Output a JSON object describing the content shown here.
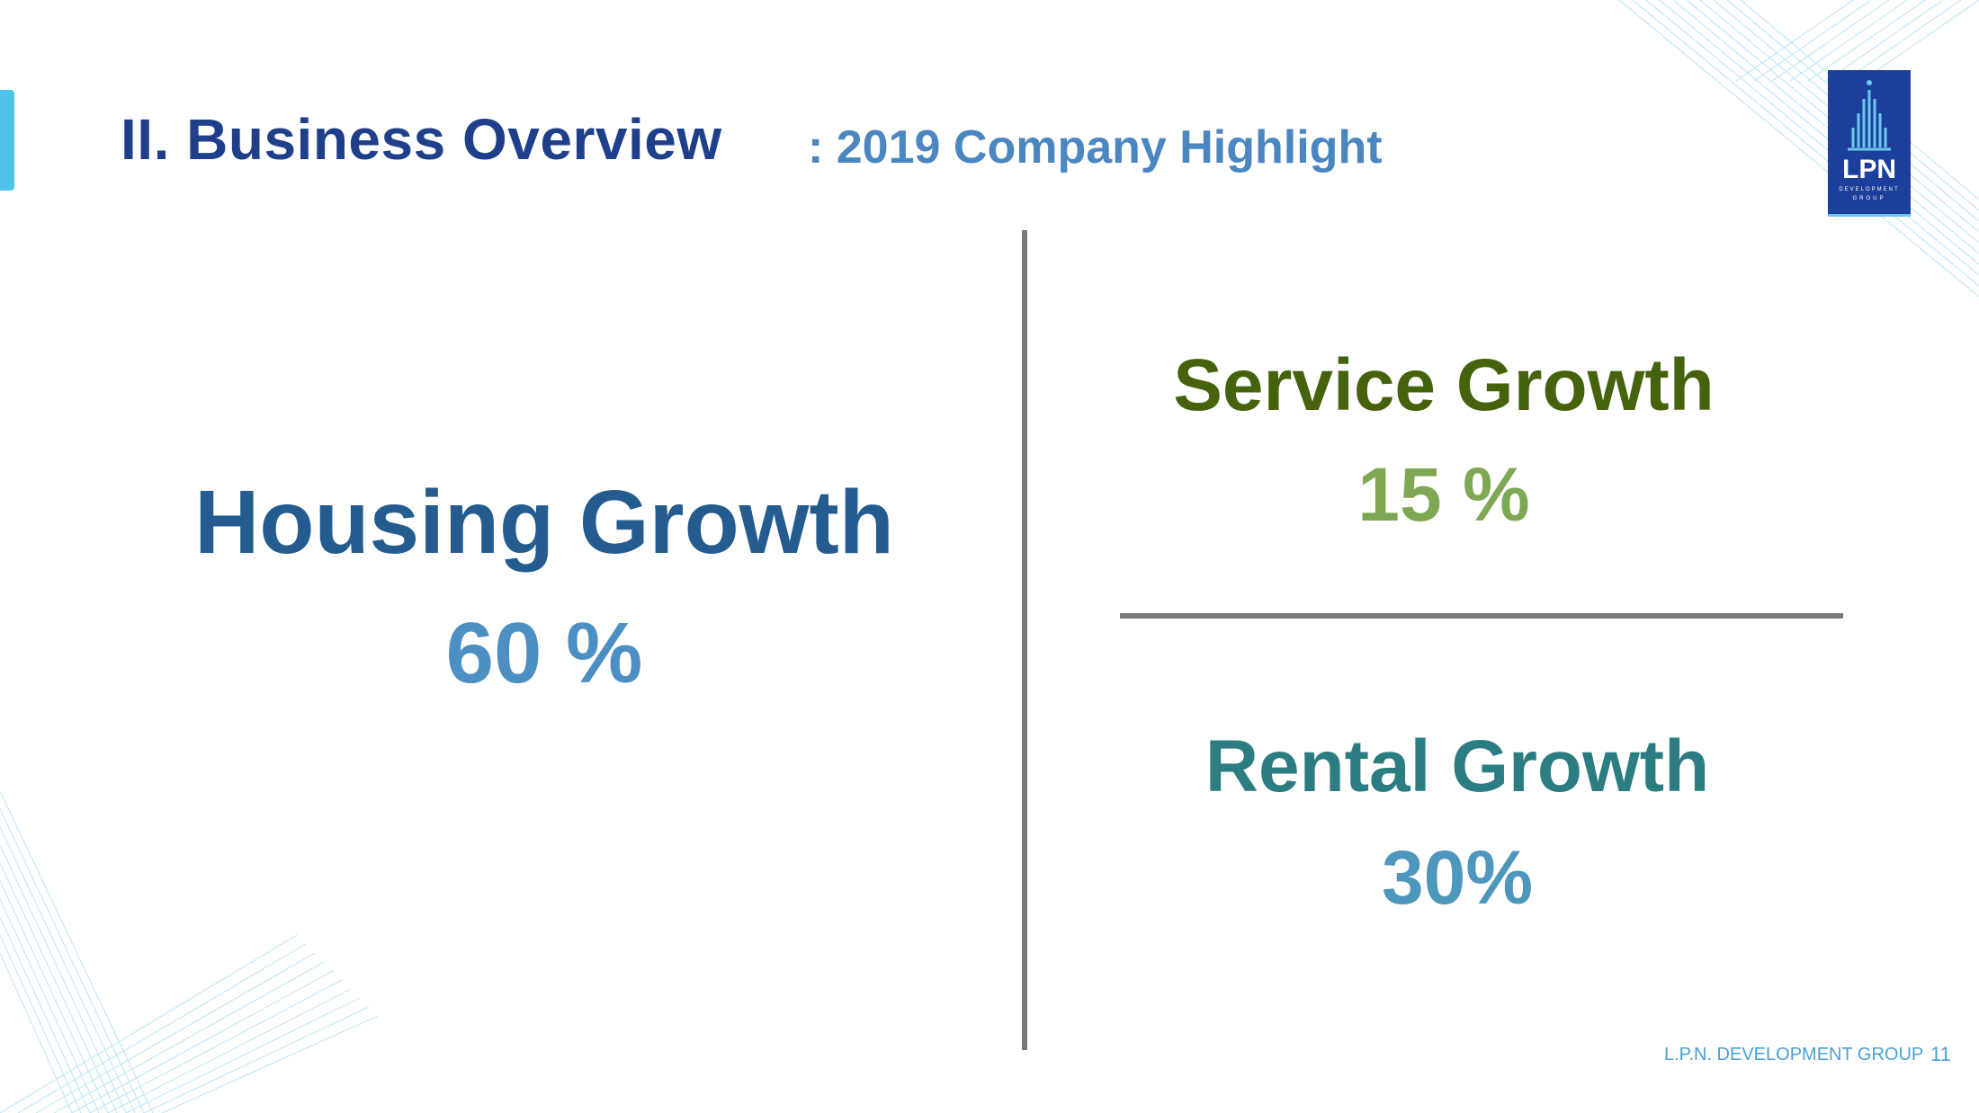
{
  "header": {
    "title": "II. Business Overview",
    "subtitle": ": 2019 Company Highlight"
  },
  "logo": {
    "text": "LPN",
    "line1": "DEVELOPMENT",
    "line2": "GROUP",
    "color": "#1d3f9c",
    "icon": "building-icon"
  },
  "highlights": {
    "housing": {
      "label": "Housing Growth",
      "value": "60 %"
    },
    "service": {
      "label": "Service Growth",
      "value": "15 %"
    },
    "rental": {
      "label": "Rental Growth",
      "value": "30%"
    }
  },
  "footer": {
    "company": "L.P.N. DEVELOPMENT GROUP",
    "page": "11"
  },
  "colors": {
    "accent": "#4fc3e8",
    "title": "#1f3f8a",
    "housing": "#245c90",
    "service": "#45620c",
    "rental": "#2c7d82",
    "divider": "#7a7a7a"
  }
}
